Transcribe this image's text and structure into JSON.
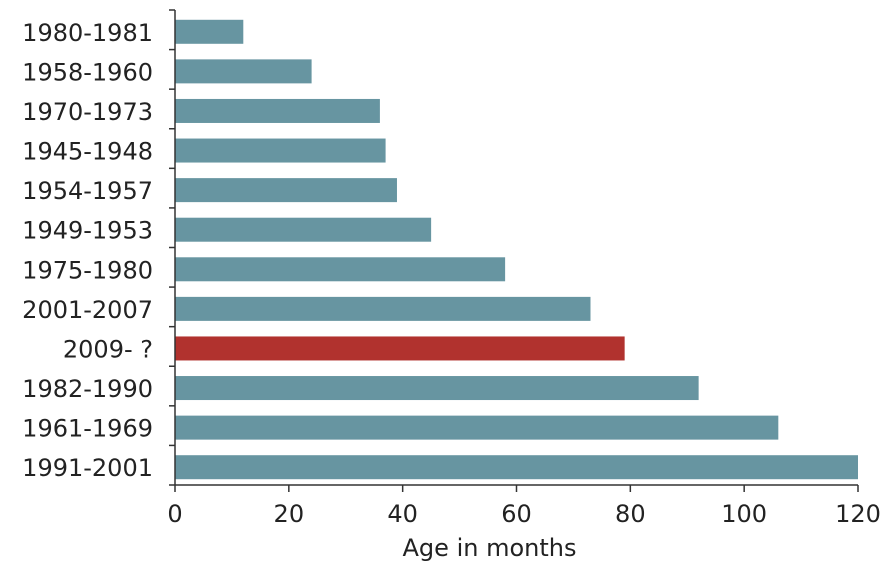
{
  "chart_data": {
    "type": "bar",
    "orientation": "horizontal",
    "categories": [
      "1980-1981",
      "1958-1960",
      "1970-1973",
      "1945-1948",
      "1954-1957",
      "1949-1953",
      "1975-1980",
      "2001-2007",
      "2009- ?",
      "1982-1990",
      "1961-1969",
      "1991-2001"
    ],
    "values": [
      12,
      24,
      36,
      37,
      39,
      45,
      58,
      73,
      79,
      92,
      106,
      120
    ],
    "highlight_category": "2009- ?",
    "title": "",
    "xlabel": "Age in months",
    "ylabel": "",
    "xlim": [
      0,
      120
    ],
    "xticks": [
      0,
      20,
      40,
      60,
      80,
      100,
      120
    ],
    "grid": false,
    "colors": {
      "bar": "#6795a1",
      "highlight": "#b1322e",
      "axis": "#333333",
      "text": "#222222"
    }
  }
}
